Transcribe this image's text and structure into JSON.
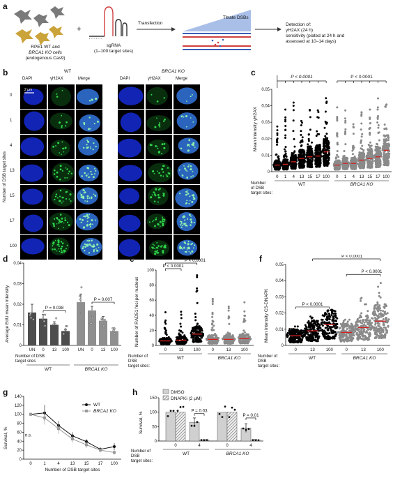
{
  "panels": {
    "a": {
      "label": "a",
      "cells_caption_line1": "RPE1 WT and",
      "cells_caption_line2": "BRCA1 KO cells",
      "cells_caption_line3": "(endogenous Cas9)",
      "plus": "+",
      "sgrna_line1": "sgRNA",
      "sgrna_line2": "(1–100 target sites)",
      "transfection": "Transfection",
      "titrate": "Titrate DSBs",
      "detection_line1": "Detection of:",
      "detection_line2": "γH2AX (24 h)",
      "detection_line3": "sensitivity (plated at 24 h and",
      "detection_line4": "assessed at 10–14 days)"
    },
    "b": {
      "label": "b",
      "wt_title": "WT",
      "ko_title": "BRCA1 KO",
      "columns": [
        "DAPI",
        "γH2AX",
        "Merge"
      ],
      "rows": [
        "0",
        "1",
        "4",
        "13",
        "15",
        "17",
        "100"
      ],
      "scale_bar": "2 μm",
      "y_title": "Number of DSB target sites"
    },
    "c": {
      "label": "c",
      "ylabel": "Mean intensity γH2AX",
      "yticks": [
        "0",
        "0.01",
        "0.02",
        "0.03",
        "0.04",
        "0.05"
      ],
      "xticks": [
        "0",
        "1",
        "4",
        "13",
        "15",
        "17",
        "100"
      ],
      "pvalue_wt": "P < 0.0001",
      "pvalue_ko": "P < 0.0001",
      "xrow_title_1": "Number",
      "xrow_title_2": "of DSB",
      "xrow_title_3": "target sites:",
      "wt_label": "WT",
      "ko_label": "BRCA1 KO"
    },
    "d": {
      "label": "d",
      "ylabel": "Average EdU mean intensity",
      "yticks": [
        "0",
        "0.01",
        "0.02",
        "0.03",
        "0.04"
      ],
      "xticks": [
        "UN",
        "0",
        "13",
        "100",
        "UN",
        "0",
        "13",
        "100"
      ],
      "p_wt": "P = 0.038",
      "p_ko": "P = 0.007",
      "xrow_title_1": "Number of DSB",
      "xrow_title_2": "target sites",
      "wt_label": "WT",
      "ko_label": "BRCA1 KO"
    },
    "e": {
      "label": "e",
      "ylabel": "Number of RAD51 foci per nucleus",
      "yticks": [
        "0",
        "20",
        "40",
        "60",
        "80",
        "100"
      ],
      "xticks": [
        "0",
        "13",
        "100",
        "0",
        "13",
        "100"
      ],
      "p1": "P < 0.0001",
      "p2": "P < 0.0001",
      "xrow_title_1": "Number of",
      "xrow_title_2": "DSB",
      "xrow_title_3": "target sites:",
      "wt_label": "WT",
      "ko_label": "BRCA1 KO"
    },
    "f": {
      "label": "f",
      "ylabel": "Mean intensity CS-DNAPK",
      "yticks": [
        "0",
        "0.01",
        "0.02",
        "0.03",
        "0.04",
        "0.05"
      ],
      "xticks": [
        "0",
        "13",
        "100",
        "0",
        "13",
        "100"
      ],
      "p1": "P < 0.0001",
      "p2": "P < 0.0001",
      "p3": "P < 0.0001",
      "xrow_title_1": "Number of",
      "xrow_title_2": "DSB",
      "xrow_title_3": "target sites:",
      "wt_label": "WT",
      "ko_label": "BRCA1 KO"
    },
    "g": {
      "label": "g",
      "ylabel": "Survival, %",
      "xlabel": "Number of DSB target sites",
      "yticks": [
        "0",
        "20",
        "40",
        "60",
        "80",
        "100",
        "120",
        "140"
      ],
      "xticks": [
        "0",
        "1",
        "4",
        "13",
        "15",
        "17",
        "100"
      ],
      "legend_wt": "WT",
      "legend_ko": "BRCA1 KO",
      "ns": "n.s."
    },
    "h": {
      "label": "h",
      "ylabel": "Survival, %",
      "yticks": [
        "0",
        "50",
        "100",
        "150"
      ],
      "xticks": [
        "0",
        "4",
        "0",
        "4"
      ],
      "legend_dmso": "DMSO",
      "legend_dnapki": "DNAPKi (2 μM)",
      "p_wt": "P = 0.03",
      "p_ko": "P = 0.01",
      "xrow_title_1": "Number of",
      "xrow_title_2": "DSB",
      "xrow_title_3": "target sites:",
      "wt_label": "WT",
      "ko_label": "BRCA1 KO"
    }
  },
  "chart_data": [
    {
      "panel": "c",
      "type": "scatter",
      "categories": [
        "0",
        "1",
        "4",
        "13",
        "15",
        "17",
        "100"
      ],
      "series": [
        {
          "name": "WT",
          "medians": [
            0.004,
            0.0045,
            0.006,
            0.008,
            0.009,
            0.0095,
            0.012
          ],
          "max": [
            0.03,
            0.039,
            0.042,
            0.042,
            0.046,
            0.048,
            0.049
          ]
        },
        {
          "name": "BRCA1 KO",
          "medians": [
            0.004,
            0.005,
            0.005,
            0.007,
            0.008,
            0.009,
            0.013
          ],
          "max": [
            0.048,
            0.038,
            0.033,
            0.038,
            0.041,
            0.047,
            0.043
          ]
        }
      ],
      "ylim": [
        0,
        0.05
      ]
    },
    {
      "panel": "d",
      "type": "bar",
      "categories": [
        "UN",
        "0",
        "13",
        "100",
        "UN",
        "0",
        "13",
        "100"
      ],
      "values": [
        0.016,
        0.013,
        0.01,
        0.007,
        0.021,
        0.017,
        0.012,
        0.007
      ],
      "errors": [
        0.004,
        0.002,
        0.0015,
        0.0005,
        0.004,
        0.002,
        0.002,
        0.001
      ],
      "ylim": [
        0,
        0.04
      ]
    },
    {
      "panel": "e",
      "type": "scatter",
      "categories": [
        "0",
        "13",
        "100",
        "0",
        "13",
        "100"
      ],
      "medians": [
        6,
        7,
        15,
        8,
        8,
        9
      ],
      "max": [
        45,
        45,
        99,
        62,
        68,
        62
      ],
      "ylim": [
        0,
        100
      ]
    },
    {
      "panel": "f",
      "type": "scatter",
      "categories": [
        "0",
        "13",
        "100",
        "0",
        "13",
        "100"
      ],
      "medians": [
        0.006,
        0.009,
        0.013,
        0.008,
        0.011,
        0.015
      ],
      "max": [
        0.012,
        0.018,
        0.022,
        0.016,
        0.031,
        0.043
      ],
      "ylim": [
        0,
        0.05
      ]
    },
    {
      "panel": "g",
      "type": "line",
      "x": [
        "0",
        "1",
        "4",
        "13",
        "15",
        "17",
        "100"
      ],
      "series": [
        {
          "name": "WT",
          "values": [
            100,
            103,
            75,
            52,
            39,
            22,
            28
          ],
          "errors": [
            2,
            18,
            10,
            8,
            6,
            5,
            8
          ]
        },
        {
          "name": "BRCA1 KO",
          "values": [
            100,
            92,
            68,
            45,
            32,
            20,
            15
          ],
          "errors": [
            2,
            15,
            12,
            8,
            7,
            5,
            5
          ]
        }
      ],
      "ylim": [
        0,
        140
      ]
    },
    {
      "panel": "h",
      "type": "bar",
      "categories": [
        "0",
        "4",
        "0",
        "4"
      ],
      "series": [
        {
          "name": "DMSO",
          "values": [
            100,
            65,
            100,
            45
          ],
          "errors": [
            0,
            15,
            0,
            15
          ]
        },
        {
          "name": "DNAPKi (2 μM)",
          "values": [
            100,
            3,
            100,
            3
          ],
          "errors": [
            0,
            2,
            0,
            2
          ]
        }
      ],
      "ylim": [
        0,
        150
      ]
    }
  ],
  "colors": {
    "wt_points": "#000000",
    "ko_points": "#8a8a8a",
    "median": "#d62020",
    "dapi": "#1428c8",
    "h2ax": "#2fd24a",
    "bar_wt": "#4d4d4d",
    "bar_ko": "#8f8f8f",
    "titrate": "#9fb7e6",
    "cells_grey": "#777777",
    "cells_gold": "#c9a53c"
  }
}
